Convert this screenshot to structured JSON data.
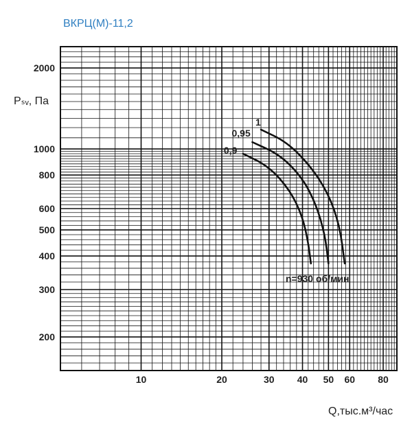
{
  "chart_data": {
    "type": "line",
    "title": "ВКРЦ(М)-11,2",
    "xlabel": "Q,тыс.м³/час",
    "ylabel": "Pₛᵥ, Па",
    "xscale": "log",
    "yscale": "log",
    "xlim": [
      5,
      90
    ],
    "ylim": [
      150,
      2400
    ],
    "x_ticks": [
      10,
      20,
      30,
      40,
      50,
      60,
      80
    ],
    "y_ticks": [
      200,
      300,
      400,
      500,
      600,
      800,
      1000,
      2000
    ],
    "grid": true,
    "annotation": "n=930 об/мин",
    "series": [
      {
        "name": "0,9",
        "points": [
          [
            24,
            960
          ],
          [
            30,
            860
          ],
          [
            36,
            700
          ],
          [
            40,
            560
          ],
          [
            42,
            450
          ],
          [
            43,
            375
          ]
        ]
      },
      {
        "name": "0,95",
        "points": [
          [
            26,
            1060
          ],
          [
            33,
            950
          ],
          [
            40,
            780
          ],
          [
            45,
            620
          ],
          [
            48.5,
            480
          ],
          [
            50,
            375
          ]
        ]
      },
      {
        "name": "1",
        "points": [
          [
            28,
            1180
          ],
          [
            35,
            1060
          ],
          [
            43,
            860
          ],
          [
            50,
            680
          ],
          [
            55,
            520
          ],
          [
            57.5,
            375
          ]
        ]
      }
    ]
  }
}
